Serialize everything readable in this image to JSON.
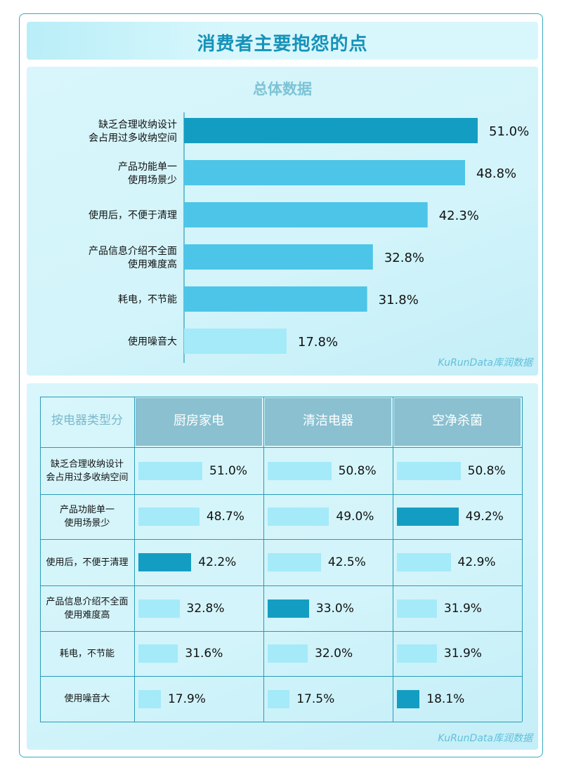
{
  "title": "消费者主要抱怨的点",
  "watermark": "KuRunData库润数据",
  "colors": {
    "highlight": "#149dc3",
    "main": "#4cc5e8",
    "light": "#a4eaf9",
    "header": "#8ac0d0",
    "grid": "#2a9bb6"
  },
  "chart_data": [
    {
      "type": "bar",
      "orientation": "horizontal",
      "title": "总体数据",
      "categories": [
        "缺乏合理收纳设计\n会占用过多收纳空间",
        "产品功能单一\n使用场景少",
        "使用后，不便于清理",
        "产品信息介绍不全面\n使用难度高",
        "耗电，不节能",
        "使用噪音大"
      ],
      "values": [
        51.0,
        48.8,
        42.3,
        32.8,
        31.8,
        17.8
      ],
      "labels": [
        "51.0%",
        "48.8%",
        "42.3%",
        "32.8%",
        "31.8%",
        "17.8%"
      ],
      "unit": "%",
      "xlim": [
        0,
        60
      ]
    },
    {
      "type": "table",
      "corner": "按电器类型分",
      "columns": [
        "厨房家电",
        "清洁电器",
        "空净杀菌"
      ],
      "rows": [
        "缺乏合理收纳设计\n会占用过多收纳空间",
        "产品功能单一\n使用场景少",
        "使用后，不便于清理",
        "产品信息介绍不全面\n使用难度高",
        "耗电，不节能",
        "使用噪音大"
      ],
      "series": [
        {
          "values": [
            51.0,
            48.7,
            42.2,
            32.8,
            31.6,
            17.9
          ],
          "labels": [
            "51.0%",
            "48.7%",
            "42.2%",
            "32.8%",
            "31.6%",
            "17.9%"
          ],
          "highlight_row": 2
        },
        {
          "values": [
            50.8,
            49.0,
            42.5,
            33.0,
            32.0,
            17.5
          ],
          "labels": [
            "50.8%",
            "49.0%",
            "42.5%",
            "33.0%",
            "32.0%",
            "17.5%"
          ],
          "highlight_row": 3
        },
        {
          "values": [
            50.8,
            49.2,
            42.9,
            31.9,
            31.9,
            18.1
          ],
          "labels": [
            "50.8%",
            "49.2%",
            "42.9%",
            "31.9%",
            "31.9%",
            "18.1%"
          ],
          "highlight_rows": [
            1,
            5
          ]
        }
      ]
    }
  ]
}
